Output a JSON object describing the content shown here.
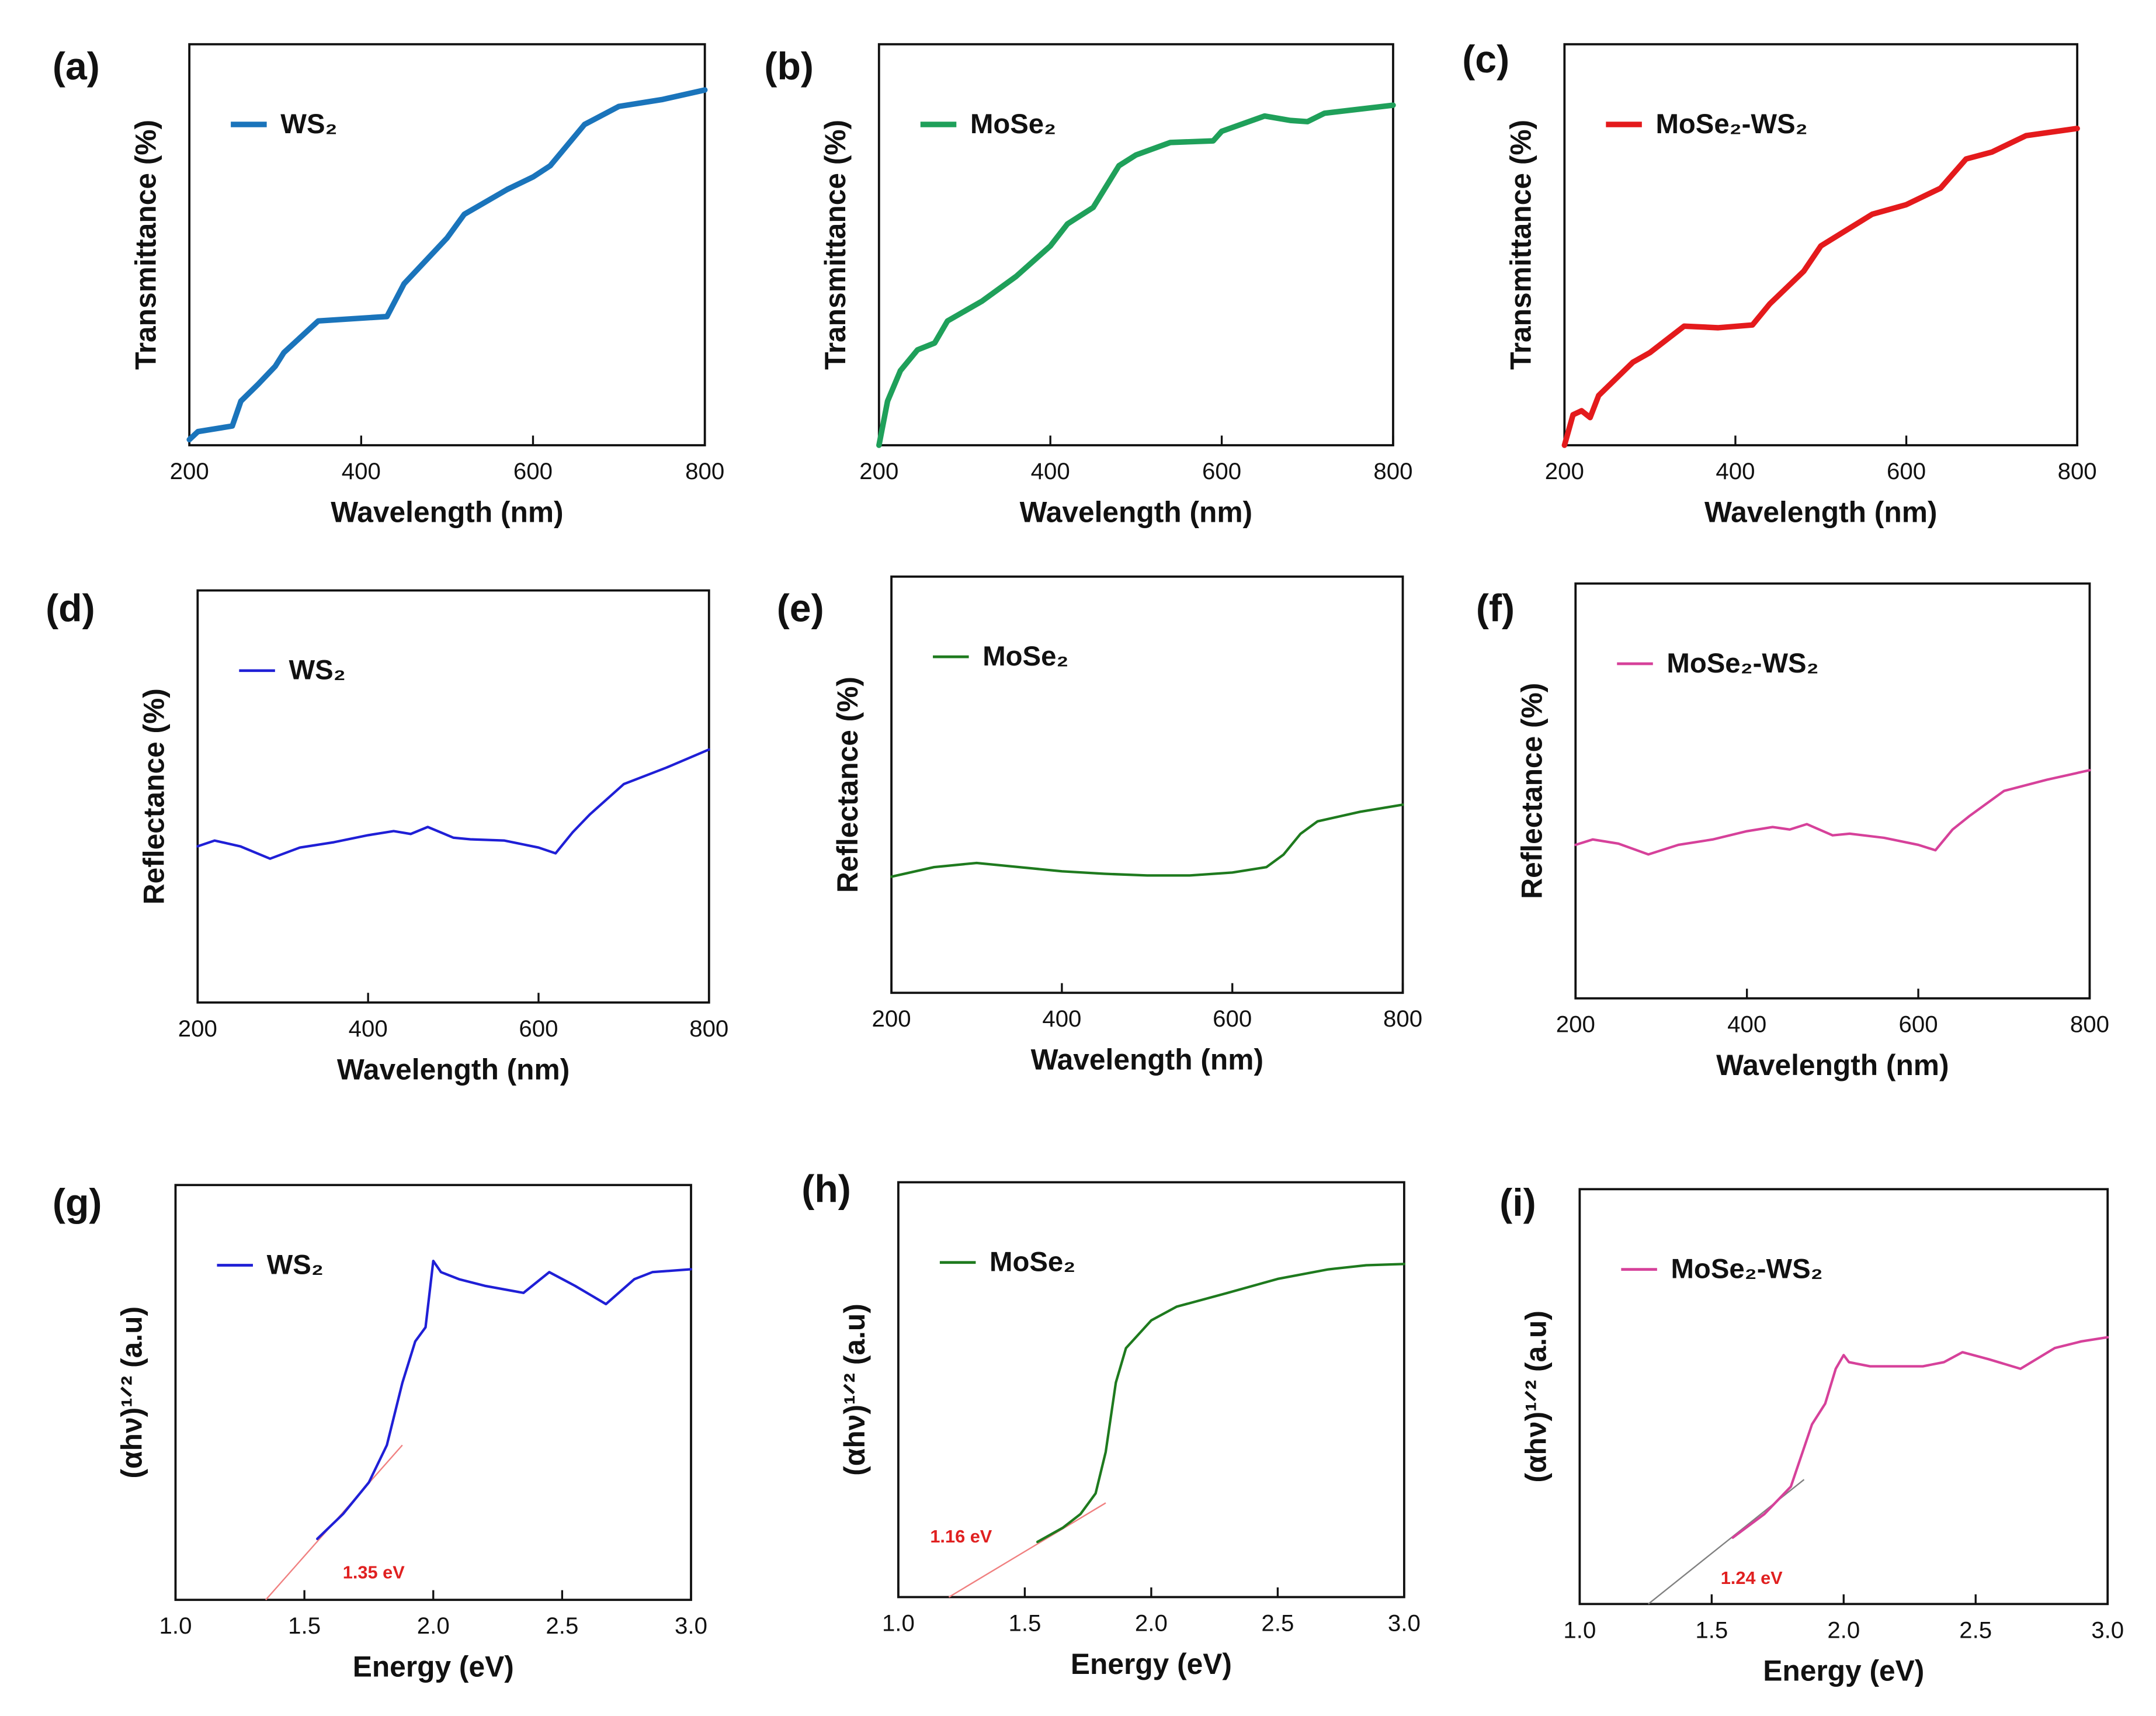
{
  "chart_data": [
    {
      "type": "line",
      "panel_label": "(a)",
      "x_label": "Wavelength (nm)",
      "y_label": "Transmittance (%)",
      "x": [
        200,
        210,
        250,
        260,
        280,
        300,
        310,
        350,
        430,
        450,
        500,
        520,
        570,
        600,
        620,
        660,
        700,
        750,
        800
      ],
      "series": [
        {
          "name": "WS₂",
          "color": "#1a74bb",
          "values": [
            1.4,
            3.4,
            4.8,
            11,
            15.2,
            19.7,
            23.1,
            31,
            32.1,
            40.3,
            51.7,
            57.6,
            63.8,
            66.9,
            69.7,
            80,
            84.5,
            86.2,
            88.6
          ]
        }
      ],
      "xlim": [
        200,
        800
      ],
      "ylim": [
        0,
        100
      ],
      "xticks": [
        200,
        400,
        600,
        800
      ],
      "legend": "upper left"
    },
    {
      "type": "line",
      "panel_label": "(b)",
      "x_label": "Wavelength (nm)",
      "y_label": "Transmittance (%)",
      "x": [
        200,
        210,
        225,
        245,
        265,
        280,
        320,
        360,
        400,
        420,
        450,
        480,
        500,
        540,
        590,
        600,
        650,
        680,
        700,
        720,
        800
      ],
      "series": [
        {
          "name": "MoSe₂",
          "color": "#1fa05a",
          "values": [
            0,
            11,
            18.6,
            23.8,
            25.5,
            31,
            35.9,
            42.1,
            49.7,
            55.2,
            59.3,
            69.7,
            72.4,
            75.5,
            75.9,
            78.3,
            82.1,
            81,
            80.7,
            82.8,
            84.8
          ]
        }
      ],
      "xlim": [
        200,
        800
      ],
      "ylim": [
        0,
        100
      ],
      "xticks": [
        200,
        400,
        600,
        800
      ],
      "legend": "upper left"
    },
    {
      "type": "line",
      "panel_label": "(c)",
      "x_label": "Wavelength (nm)",
      "y_label": "Transmittance (%)",
      "x": [
        200,
        210,
        220,
        230,
        240,
        280,
        300,
        340,
        380,
        420,
        440,
        480,
        500,
        560,
        600,
        640,
        670,
        700,
        740,
        800
      ],
      "series": [
        {
          "name": "MoSe₂-WS₂",
          "color": "#e41a1c",
          "values": [
            0,
            7.6,
            8.6,
            6.9,
            12.4,
            20.7,
            23.1,
            29.7,
            29.3,
            30,
            35.2,
            43.4,
            49.7,
            57.6,
            60,
            64.1,
            71.4,
            73.1,
            77.2,
            79
          ]
        }
      ],
      "xlim": [
        200,
        800
      ],
      "ylim": [
        0,
        100
      ],
      "xticks": [
        200,
        400,
        600,
        800
      ],
      "legend": "upper left"
    },
    {
      "type": "line",
      "panel_label": "(d)",
      "x_label": "Wavelength (nm)",
      "y_label": "Reflectance (%)",
      "x": [
        200,
        220,
        250,
        285,
        320,
        360,
        400,
        430,
        450,
        470,
        500,
        520,
        560,
        600,
        620,
        640,
        660,
        700,
        750,
        800
      ],
      "series": [
        {
          "name": "WS₂",
          "color": "#1f1fd6",
          "values": [
            37.9,
            39.3,
            37.9,
            34.9,
            37.6,
            38.9,
            40.6,
            41.6,
            40.9,
            42.6,
            40,
            39.6,
            39.3,
            37.6,
            36.2,
            41.3,
            45.6,
            53,
            57,
            61.4
          ]
        }
      ],
      "xlim": [
        200,
        800
      ],
      "ylim": [
        0,
        100
      ],
      "xticks": [
        200,
        400,
        600,
        800
      ],
      "legend": "upper left"
    },
    {
      "type": "line",
      "panel_label": "(e)",
      "x_label": "Wavelength (nm)",
      "y_label": "Reflectance (%)",
      "x": [
        200,
        250,
        300,
        350,
        400,
        450,
        500,
        550,
        600,
        640,
        660,
        680,
        700,
        750,
        800
      ],
      "series": [
        {
          "name": "MoSe₂",
          "color": "#1e7a1e",
          "values": [
            27.9,
            30.2,
            31.2,
            30.2,
            29.2,
            28.6,
            28.2,
            28.2,
            28.9,
            30.2,
            33.2,
            38.2,
            41.2,
            43.5,
            45.2
          ]
        }
      ],
      "xlim": [
        200,
        800
      ],
      "ylim": [
        0,
        100
      ],
      "xticks": [
        200,
        400,
        600,
        800
      ],
      "legend": "upper left"
    },
    {
      "type": "line",
      "panel_label": "(f)",
      "x_label": "Wavelength (nm)",
      "y_label": "Reflectance (%)",
      "x": [
        200,
        220,
        250,
        285,
        320,
        360,
        400,
        430,
        450,
        470,
        500,
        520,
        560,
        600,
        620,
        640,
        660,
        700,
        750,
        800
      ],
      "series": [
        {
          "name": "MoSe₂-WS₂",
          "color": "#d6419a",
          "values": [
            37,
            38.3,
            37.3,
            34.7,
            37,
            38.3,
            40.3,
            41.3,
            40.7,
            42,
            39.3,
            39.7,
            38.7,
            37,
            35.7,
            40.7,
            44,
            50,
            52.7,
            55
          ]
        }
      ],
      "xlim": [
        200,
        800
      ],
      "ylim": [
        0,
        100
      ],
      "xticks": [
        200,
        400,
        600,
        800
      ],
      "legend": "upper left"
    },
    {
      "type": "line",
      "panel_label": "(g)",
      "x_label": "Energy (eV)",
      "y_label": "(αhν)¹ᐟ² (a.u)",
      "x": [
        1.55,
        1.65,
        1.75,
        1.82,
        1.88,
        1.93,
        1.97,
        2.0,
        2.03,
        2.1,
        2.2,
        2.35,
        2.45,
        2.55,
        2.67,
        2.78,
        2.85,
        3.0
      ],
      "series": [
        {
          "name": "WS₂",
          "color": "#1f1fd6",
          "values": [
            14.7,
            20.7,
            28.3,
            37.3,
            52.3,
            62.3,
            65.7,
            81.7,
            79,
            77.3,
            75.7,
            74,
            79,
            75.7,
            71.3,
            77.3,
            79,
            79.7
          ]
        }
      ],
      "tangent": {
        "x": [
          1.35,
          1.88
        ],
        "values": [
          0,
          37.3
        ],
        "color": "#f08080"
      },
      "annotation": "1.35 eV",
      "xlim": [
        1,
        3
      ],
      "ylim": [
        0,
        100
      ],
      "xticks": [
        {
          "value": 1,
          "label": "1.0"
        },
        1.5,
        {
          "value": 2,
          "label": "2.0"
        },
        2.5,
        {
          "value": 3,
          "label": "3.0"
        }
      ],
      "legend": "upper left"
    },
    {
      "type": "line",
      "panel_label": "(h)",
      "x_label": "Energy (eV)",
      "y_label": "(αhν)¹ᐟ² (a.u)",
      "x": [
        1.55,
        1.65,
        1.72,
        1.78,
        1.82,
        1.86,
        1.9,
        2.0,
        2.1,
        2.3,
        2.5,
        2.7,
        2.85,
        3.0
      ],
      "series": [
        {
          "name": "MoSe₂",
          "color": "#1e7a1e",
          "values": [
            13.3,
            16.7,
            20,
            25,
            35,
            51.7,
            60,
            66.7,
            70,
            73.3,
            76.7,
            79,
            80,
            80.3
          ]
        }
      ],
      "tangent": {
        "x": [
          1.2,
          1.82
        ],
        "values": [
          0,
          22.7
        ],
        "color": "#f08080"
      },
      "annotation": "1.16 eV",
      "xlim": [
        1,
        3
      ],
      "ylim": [
        0,
        100
      ],
      "xticks": [
        {
          "value": 1,
          "label": "1.0"
        },
        1.5,
        {
          "value": 2,
          "label": "2.0"
        },
        2.5,
        {
          "value": 3,
          "label": "3.0"
        }
      ],
      "legend": "upper left"
    },
    {
      "type": "line",
      "panel_label": "(i)",
      "x_label": "Energy (eV)",
      "y_label": "(αhν)¹ᐟ² (a.u)",
      "x": [
        1.58,
        1.7,
        1.8,
        1.88,
        1.93,
        1.97,
        2.0,
        2.02,
        2.1,
        2.3,
        2.38,
        2.45,
        2.55,
        2.67,
        2.8,
        2.9,
        3.0
      ],
      "series": [
        {
          "name": "MoSe₂-WS₂",
          "color": "#d6419a",
          "values": [
            16,
            21.7,
            28.3,
            43.3,
            48.3,
            56.7,
            60,
            58.3,
            57.3,
            57.3,
            58.3,
            60.7,
            59,
            56.7,
            61.7,
            63.3,
            64.3
          ]
        }
      ],
      "tangent": {
        "x": [
          1.26,
          1.85
        ],
        "values": [
          0,
          30
        ],
        "color": "#808080"
      },
      "annotation": "1.24 eV",
      "xlim": [
        1,
        3
      ],
      "ylim": [
        0,
        100
      ],
      "xticks": [
        {
          "value": 1,
          "label": "1.0"
        },
        1.5,
        {
          "value": 2,
          "label": "2.0"
        },
        2.5,
        {
          "value": 3,
          "label": "3.0"
        }
      ],
      "legend": "upper left"
    }
  ]
}
